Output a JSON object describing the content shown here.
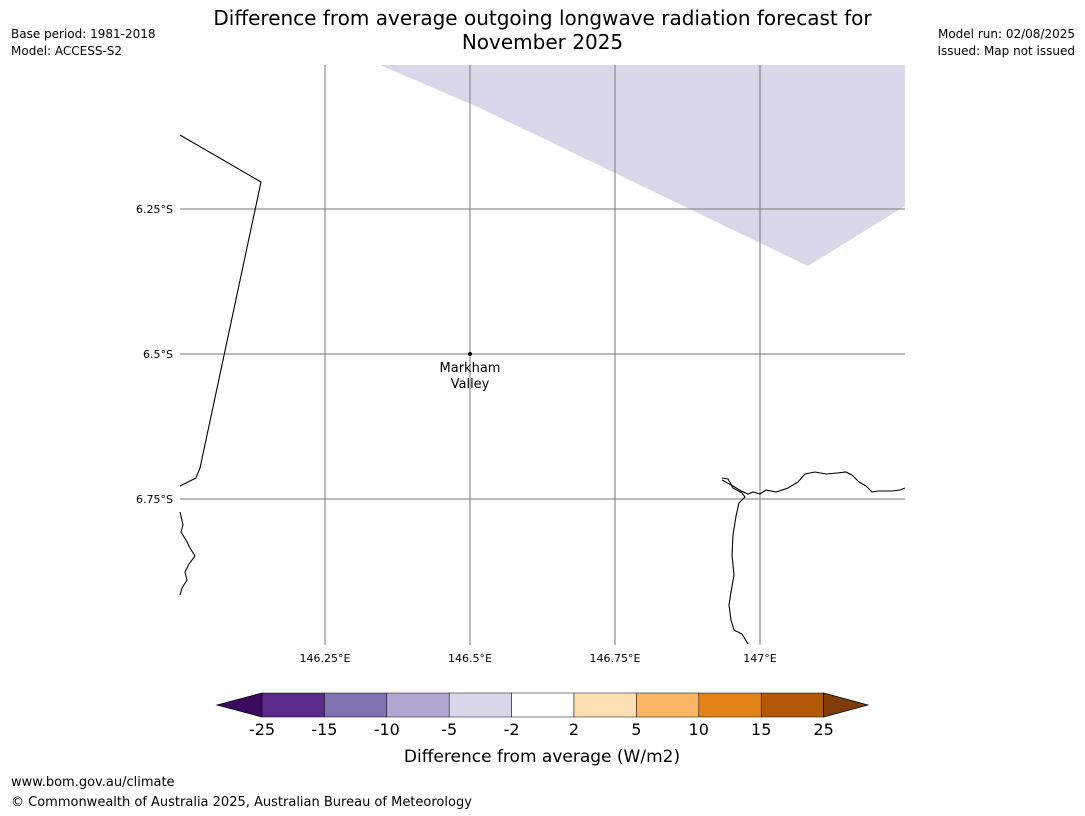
{
  "title_line1": "Difference from average outgoing longwave radiation forecast for",
  "title_line2": "November 2025",
  "base_period": "Base period: 1981-2018",
  "model": "Model: ACCESS-S2",
  "model_run": "Model run: 02/08/2025",
  "issued": "Issued: Map not issued",
  "lat_labels": [
    "6.25°S",
    "6.5°S",
    "6.75°S"
  ],
  "lon_labels": [
    "146.25°E",
    "146.5°E",
    "146.75°E",
    "147°E"
  ],
  "place": {
    "name_line1": "Markham",
    "name_line2": "Valley"
  },
  "colorbar": {
    "label": "Difference from average (W/m2)",
    "ticks": [
      "-25",
      "-15",
      "-10",
      "-5",
      "-2",
      "2",
      "5",
      "10",
      "15",
      "25"
    ],
    "colors": [
      "#3a0a5e",
      "#5a2a8a",
      "#8071b0",
      "#b0a7d2",
      "#d8d8ea",
      "#ffffff",
      "#fddfb4",
      "#fbb663",
      "#e38216",
      "#b35806",
      "#7f3b08"
    ]
  },
  "shaded_region_color": "#d8d8ea",
  "footer_url": "www.bom.gov.au/climate",
  "footer_copyright": "© Commonwealth of Australia 2025, Australian Bureau of Meteorology"
}
